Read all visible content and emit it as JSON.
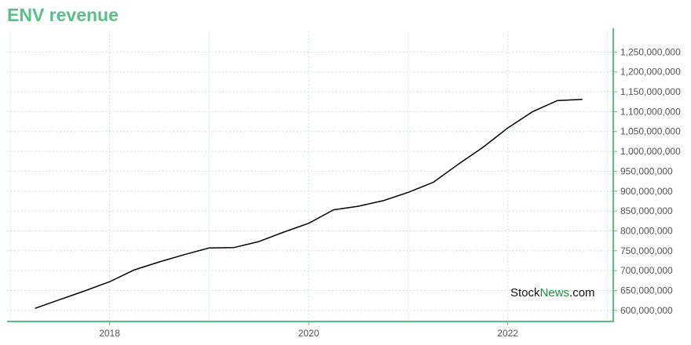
{
  "chart_data": {
    "type": "line",
    "title": "ENV revenue",
    "xlabel": "",
    "ylabel": "",
    "x_tick_labels": [
      "2018",
      "2020",
      "2022"
    ],
    "y_tick_labels": [
      "600,000,000",
      "650,000,000",
      "700,000,000",
      "750,000,000",
      "800,000,000",
      "850,000,000",
      "900,000,000",
      "950,000,000",
      "1,000,000,000",
      "1,050,000,000",
      "1,100,000,000",
      "1,150,000,000",
      "1,200,000,000",
      "1,250,000,000"
    ],
    "y_ticks": [
      600000000,
      650000000,
      700000000,
      750000000,
      800000000,
      850000000,
      900000000,
      950000000,
      1000000000,
      1050000000,
      1100000000,
      1150000000,
      1200000000,
      1250000000
    ],
    "x_ticks": [
      2018,
      2020,
      2022
    ],
    "xlim": [
      2016.97,
      2023.06
    ],
    "ylim": [
      572000000,
      1302000000
    ],
    "grid": true,
    "series": [
      {
        "color": "#000000",
        "x": [
          2017.25,
          2017.5,
          2017.75,
          2018.0,
          2018.25,
          2018.5,
          2018.75,
          2019.0,
          2019.25,
          2019.5,
          2019.75,
          2020.0,
          2020.25,
          2020.5,
          2020.75,
          2021.0,
          2021.25,
          2021.5,
          2021.75,
          2022.0,
          2022.25,
          2022.5,
          2022.75
        ],
        "values": [
          605000000,
          627000000,
          649000000,
          672000000,
          702000000,
          722000000,
          740000000,
          757000000,
          758000000,
          773000000,
          797000000,
          819000000,
          853000000,
          862000000,
          876000000,
          897000000,
          922000000,
          967000000,
          1010000000,
          1059000000,
          1100000000,
          1128000000,
          1131000000
        ]
      }
    ]
  },
  "watermark": {
    "part1": "Stock",
    "part2": "News",
    "part3": ".com"
  },
  "colors": {
    "accent": "#5abf84",
    "line": "#000000",
    "grid": "#b8e0c8"
  }
}
